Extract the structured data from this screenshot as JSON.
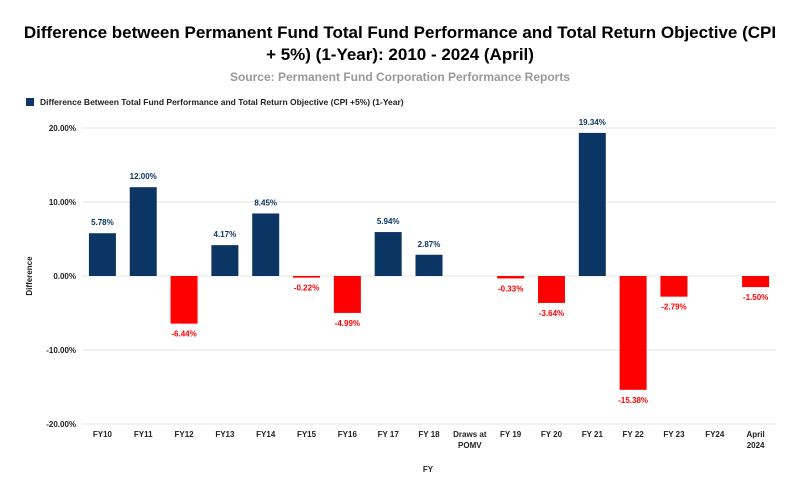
{
  "chart_data": {
    "type": "bar",
    "title": "Difference between Permanent Fund Total Fund Performance and Total Return Objective (CPI + 5%) (1-Year): 2010 - 2024 (April)",
    "title_lines": [
      "Difference between Permanent Fund Total Fund Performance and Total Return Objective (CPI",
      "+ 5%) (1-Year): 2010 - 2024 (April)"
    ],
    "subtitle": "Source: Permanent Fund Corporation Performance Reports",
    "xlabel": "FY",
    "ylabel": "Difference",
    "ylim": [
      -20,
      20
    ],
    "yticks": [
      20,
      10,
      0,
      -10,
      -20
    ],
    "ytick_labels": [
      "20.00%",
      "10.00%",
      "0.00%",
      "-10.00%",
      "-20.00%"
    ],
    "grid": true,
    "legend_position": "top-left",
    "categories": [
      "FY10",
      "FY11",
      "FY12",
      "FY13",
      "FY14",
      "FY15",
      "FY16",
      "FY 17",
      "FY 18",
      "Draws at POMV",
      "FY 19",
      "FY 20",
      "FY 21",
      "FY 22",
      "FY 23",
      "FY24",
      "April 2024"
    ],
    "category_lines": [
      [
        "FY10"
      ],
      [
        "FY11"
      ],
      [
        "FY12"
      ],
      [
        "FY13"
      ],
      [
        "FY14"
      ],
      [
        "FY15"
      ],
      [
        "FY16"
      ],
      [
        "FY 17"
      ],
      [
        "FY 18"
      ],
      [
        "Draws at",
        "POMV"
      ],
      [
        "FY 19"
      ],
      [
        "FY 20"
      ],
      [
        "FY 21"
      ],
      [
        "FY 22"
      ],
      [
        "FY 23"
      ],
      [
        "FY24"
      ],
      [
        "April",
        "2024"
      ]
    ],
    "series": [
      {
        "name": "Difference Between Total Fund Performance and Total Return Objective (CPI +5%) (1-Year)",
        "values": [
          5.78,
          12.0,
          -6.44,
          4.17,
          8.45,
          -0.22,
          -4.99,
          5.94,
          2.87,
          null,
          -0.33,
          -3.64,
          19.34,
          -15.38,
          -2.79,
          null,
          -1.5
        ],
        "data_labels": [
          "5.78%",
          "12.00%",
          "-6.44%",
          "4.17%",
          "8.45%",
          "-0.22%",
          "-4.99%",
          "5.94%",
          "2.87%",
          null,
          "-0.33%",
          "-3.64%",
          "19.34%",
          "-15.38%",
          "-2.79%",
          null,
          "-1.50%"
        ]
      }
    ],
    "colors": {
      "positive": "#0b3563",
      "negative": "#ff0000",
      "grid": "#e6e6e6"
    }
  }
}
